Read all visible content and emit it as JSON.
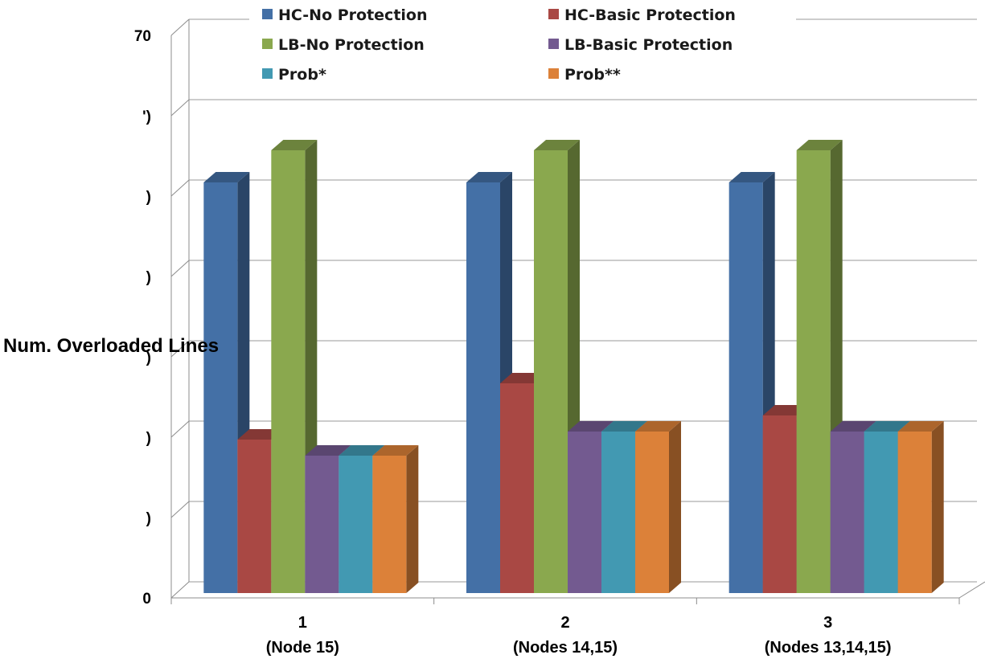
{
  "chart_data": {
    "type": "bar",
    "title": "",
    "xlabel": "",
    "ylabel": "Num.  Overloaded Lines",
    "ylim": [
      0,
      70
    ],
    "yticks": [
      0,
      10,
      20,
      30,
      40,
      50,
      60,
      70
    ],
    "ytick_labels": [
      "0",
      ")",
      ")",
      ")",
      ")",
      ")",
      "')",
      "70"
    ],
    "grid": true,
    "legend_position": "top",
    "categories": [
      {
        "line1": "1",
        "line2": "(Node 15)"
      },
      {
        "line1": "2",
        "line2": "(Nodes 14,15)"
      },
      {
        "line1": "3",
        "line2": "(Nodes 13,14,15)"
      }
    ],
    "series": [
      {
        "name": "HC-No Protection",
        "color": "#4470a6",
        "values": [
          53,
          53,
          53
        ]
      },
      {
        "name": "HC-Basic Protection",
        "color": "#a94844",
        "values": [
          21,
          28,
          24
        ]
      },
      {
        "name": "LB-No Protection",
        "color": "#8aa84e",
        "values": [
          57,
          57,
          57
        ]
      },
      {
        "name": "LB-Basic Protection",
        "color": "#735a90",
        "values": [
          19,
          22,
          22
        ]
      },
      {
        "name": "Prob*",
        "color": "#4299b2",
        "values": [
          19,
          22,
          22
        ]
      },
      {
        "name": "Prob**",
        "color": "#dc8139",
        "values": [
          19,
          22,
          22
        ]
      }
    ]
  }
}
